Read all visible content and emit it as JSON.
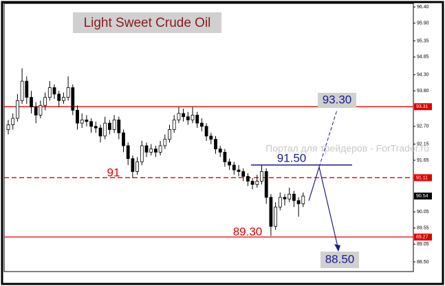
{
  "chart_data": {
    "type": "candlestick",
    "title": "Light Sweet Crude Oil",
    "watermark": "Портал для трейдеров - ForTrader.ru",
    "ylim": [
      88.2,
      96.51
    ],
    "yticks": [
      {
        "value": 96.4,
        "label": "96.40"
      },
      {
        "value": 95.9,
        "label": "95.90"
      },
      95.35,
      94.85,
      {
        "value": 94.3,
        "label": "94.30"
      },
      {
        "value": 93.8,
        "label": "93.80"
      },
      {
        "value": 92.7,
        "label": "92.70"
      },
      92.15,
      91.65,
      90.05,
      89.55,
      89.05,
      {
        "value": 88.5,
        "label": "88.50"
      }
    ],
    "grid": false,
    "color": "#000000",
    "levels": [
      {
        "value": 93.31,
        "color": "#e00000",
        "style": "solid"
      },
      {
        "value": 91.11,
        "color": "#e00000",
        "style": "dashed"
      },
      {
        "value": 89.27,
        "color": "#e00000",
        "style": "solid"
      }
    ],
    "last_price": 90.54,
    "annotations": [
      {
        "text": "91",
        "color": "#e00000"
      },
      {
        "text": "89.30",
        "color": "#e00000"
      },
      {
        "text": "91.50",
        "color": "#1a1a8c"
      },
      {
        "text": "93.30",
        "color": "#1a1a8c"
      },
      {
        "text": "88.50",
        "color": "#1a1a8c"
      }
    ],
    "ohlc": [
      [
        92.6,
        92.9,
        92.45,
        92.75
      ],
      [
        92.75,
        93.1,
        92.6,
        92.95
      ],
      [
        92.95,
        93.7,
        92.85,
        93.5
      ],
      [
        93.5,
        94.5,
        93.4,
        94.1
      ],
      [
        94.1,
        94.25,
        93.4,
        93.6
      ],
      [
        93.6,
        93.8,
        93.1,
        93.3
      ],
      [
        93.3,
        93.45,
        92.8,
        93.05
      ],
      [
        93.05,
        93.5,
        92.95,
        93.35
      ],
      [
        93.35,
        93.75,
        93.2,
        93.6
      ],
      [
        93.6,
        94.1,
        93.5,
        93.9
      ],
      [
        93.9,
        94.0,
        93.55,
        93.7
      ],
      [
        93.7,
        93.8,
        93.3,
        93.5
      ],
      [
        93.5,
        93.75,
        93.4,
        93.6
      ],
      [
        93.6,
        94.25,
        93.5,
        93.9
      ],
      [
        93.9,
        94.0,
        93.05,
        93.2
      ],
      [
        93.2,
        93.35,
        92.6,
        92.8
      ],
      [
        92.8,
        93.1,
        92.65,
        92.9
      ],
      [
        92.9,
        93.05,
        92.7,
        92.85
      ],
      [
        92.85,
        92.95,
        92.5,
        92.7
      ],
      [
        92.7,
        92.85,
        92.5,
        92.65
      ],
      [
        92.65,
        92.75,
        92.2,
        92.4
      ],
      [
        92.4,
        93.0,
        92.3,
        92.8
      ],
      [
        92.8,
        92.9,
        92.45,
        92.6
      ],
      [
        92.6,
        93.05,
        92.5,
        92.9
      ],
      [
        92.9,
        93.0,
        92.3,
        92.5
      ],
      [
        92.5,
        92.6,
        91.9,
        92.1
      ],
      [
        92.1,
        92.2,
        91.5,
        91.7
      ],
      [
        91.7,
        91.8,
        91.1,
        91.3
      ],
      [
        91.3,
        91.75,
        91.2,
        91.6
      ],
      [
        91.6,
        92.25,
        91.5,
        92.1
      ],
      [
        92.1,
        92.2,
        91.75,
        91.9
      ],
      [
        91.9,
        92.15,
        91.8,
        92.0
      ],
      [
        92.0,
        92.1,
        91.75,
        91.9
      ],
      [
        91.9,
        92.25,
        91.8,
        92.1
      ],
      [
        92.1,
        92.45,
        92.0,
        92.3
      ],
      [
        92.3,
        92.75,
        92.2,
        92.6
      ],
      [
        92.6,
        93.05,
        92.5,
        92.9
      ],
      [
        92.9,
        93.3,
        92.8,
        93.1
      ],
      [
        93.1,
        93.25,
        92.85,
        93.0
      ],
      [
        93.0,
        93.15,
        92.75,
        92.9
      ],
      [
        92.9,
        93.3,
        92.8,
        93.05
      ],
      [
        93.05,
        93.15,
        92.65,
        92.8
      ],
      [
        92.8,
        92.95,
        92.55,
        92.7
      ],
      [
        92.7,
        92.8,
        92.25,
        92.4
      ],
      [
        92.4,
        92.5,
        92.15,
        92.3
      ],
      [
        92.3,
        92.4,
        91.85,
        92.0
      ],
      [
        92.0,
        92.1,
        91.75,
        91.9
      ],
      [
        91.9,
        92.0,
        91.45,
        91.6
      ],
      [
        91.6,
        91.7,
        91.35,
        91.5
      ],
      [
        91.5,
        91.6,
        91.2,
        91.35
      ],
      [
        91.35,
        91.5,
        91.15,
        91.3
      ],
      [
        91.3,
        91.4,
        91.0,
        91.15
      ],
      [
        91.15,
        91.25,
        90.85,
        91.0
      ],
      [
        91.0,
        91.1,
        90.75,
        90.9
      ],
      [
        90.9,
        91.2,
        90.8,
        91.0
      ],
      [
        91.0,
        91.5,
        90.9,
        91.3
      ],
      [
        91.3,
        91.4,
        90.3,
        90.5
      ],
      [
        90.5,
        90.6,
        89.3,
        89.6
      ],
      [
        89.6,
        90.35,
        89.5,
        90.2
      ],
      [
        90.2,
        90.65,
        90.1,
        90.5
      ],
      [
        90.5,
        90.6,
        90.25,
        90.45
      ],
      [
        90.45,
        90.8,
        90.35,
        90.6
      ],
      [
        90.6,
        90.7,
        90.2,
        90.4
      ],
      [
        90.4,
        90.5,
        89.9,
        90.3
      ],
      [
        90.3,
        90.65,
        90.2,
        90.54
      ]
    ]
  }
}
